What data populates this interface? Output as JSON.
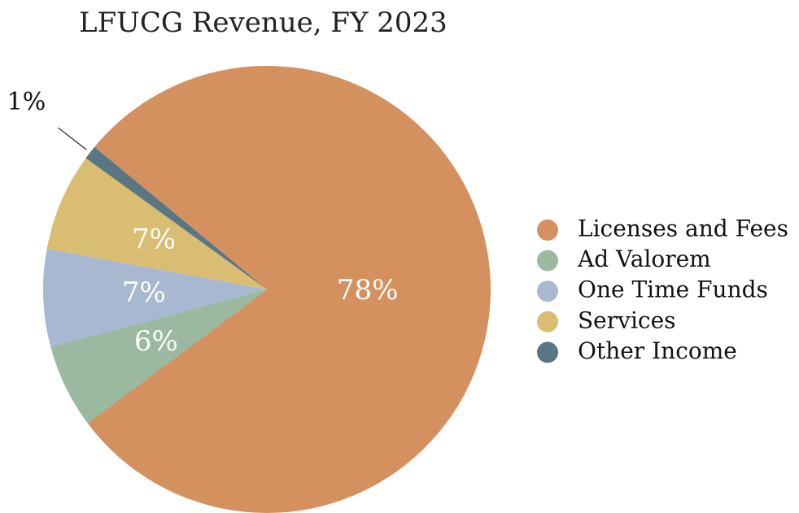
{
  "chart_data": {
    "type": "pie",
    "title": "LFUCG Revenue, FY 2023",
    "categories": [
      "Licenses and Fees",
      "Ad Valorem",
      "One Time Funds",
      "Services",
      "Other Income"
    ],
    "values": [
      78,
      6,
      7,
      7,
      1
    ],
    "value_labels": [
      "78%",
      "6%",
      "7%",
      "7%",
      "1%"
    ],
    "colors": [
      "#d4915f",
      "#9bb9a0",
      "#a8b8d0",
      "#d9bd72",
      "#5b7683"
    ],
    "legend": "right"
  }
}
